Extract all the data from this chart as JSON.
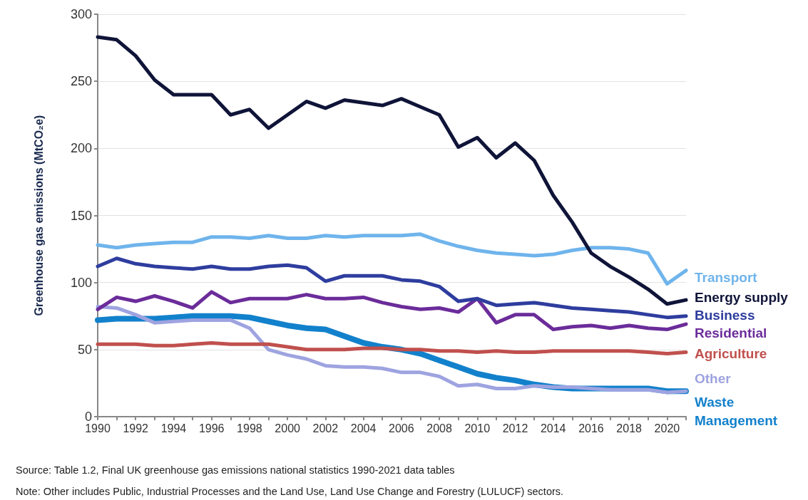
{
  "chart_data": {
    "type": "line",
    "ylabel": "Greenhouse gas emissions (MtCO₂e)",
    "x": [
      1990,
      1991,
      1992,
      1993,
      1994,
      1995,
      1996,
      1997,
      1998,
      1999,
      2000,
      2001,
      2002,
      2003,
      2004,
      2005,
      2006,
      2007,
      2008,
      2009,
      2010,
      2011,
      2012,
      2013,
      2014,
      2015,
      2016,
      2017,
      2018,
      2019,
      2020,
      2021
    ],
    "series": [
      {
        "name": "Energy supply",
        "color": "#0f1438",
        "values": [
          283,
          281,
          269,
          251,
          240,
          240,
          240,
          225,
          229,
          215,
          225,
          235,
          230,
          236,
          234,
          232,
          237,
          231,
          225,
          201,
          208,
          193,
          204,
          191,
          165,
          145,
          122,
          112,
          104,
          95,
          84,
          87
        ]
      },
      {
        "name": "Transport",
        "color": "#6fb4ec",
        "values": [
          128,
          126,
          128,
          129,
          130,
          130,
          134,
          134,
          133,
          135,
          133,
          133,
          135,
          134,
          135,
          135,
          135,
          136,
          131,
          127,
          124,
          122,
          121,
          120,
          121,
          124,
          126,
          126,
          125,
          122,
          99,
          109
        ]
      },
      {
        "name": "Business",
        "color": "#2e3d9e",
        "values": [
          112,
          118,
          114,
          112,
          111,
          110,
          112,
          110,
          110,
          112,
          113,
          111,
          101,
          105,
          105,
          105,
          102,
          101,
          97,
          86,
          88,
          83,
          84,
          85,
          83,
          81,
          80,
          79,
          78,
          76,
          74,
          75
        ]
      },
      {
        "name": "Residential",
        "color": "#6b2c9a",
        "values": [
          80,
          89,
          86,
          90,
          86,
          81,
          93,
          85,
          88,
          88,
          88,
          91,
          88,
          88,
          89,
          85,
          82,
          80,
          81,
          78,
          88,
          70,
          76,
          76,
          65,
          67,
          68,
          66,
          68,
          66,
          65,
          69
        ]
      },
      {
        "name": "Agriculture",
        "color": "#c0504d",
        "values": [
          54,
          54,
          54,
          53,
          53,
          54,
          55,
          54,
          54,
          54,
          52,
          50,
          50,
          50,
          51,
          51,
          50,
          50,
          49,
          49,
          48,
          49,
          48,
          48,
          49,
          49,
          49,
          49,
          49,
          48,
          47,
          48
        ]
      },
      {
        "name": "Other",
        "color": "#9ea3e0",
        "values": [
          82,
          81,
          76,
          70,
          71,
          72,
          72,
          72,
          66,
          50,
          46,
          43,
          38,
          37,
          37,
          36,
          33,
          33,
          30,
          23,
          24,
          21,
          21,
          23,
          22,
          22,
          21,
          20,
          20,
          20,
          18,
          19
        ]
      },
      {
        "name": "Waste Management",
        "color": "#1281cc",
        "values": [
          72,
          73,
          73,
          73,
          74,
          75,
          75,
          75,
          74,
          71,
          68,
          66,
          65,
          60,
          55,
          52,
          50,
          47,
          42,
          37,
          32,
          29,
          27,
          24,
          22,
          21,
          21,
          21,
          21,
          21,
          19,
          19
        ]
      }
    ],
    "xlim": [
      1990,
      2021
    ],
    "xticks": [
      1990,
      {
        "value": 1991,
        "label": null
      },
      1992,
      {
        "value": 1993,
        "label": null
      },
      1994,
      {
        "value": 1995,
        "label": null
      },
      1996,
      {
        "value": 1997,
        "label": null
      },
      1998,
      {
        "value": 1999,
        "label": null
      },
      2000,
      {
        "value": 2001,
        "label": null
      },
      2002,
      {
        "value": 2003,
        "label": null
      },
      2004,
      {
        "value": 2005,
        "label": null
      },
      2006,
      {
        "value": 2007,
        "label": null
      },
      2008,
      {
        "value": 2009,
        "label": null
      },
      2010,
      {
        "value": 2011,
        "label": null
      },
      2012,
      {
        "value": 2013,
        "label": null
      },
      2014,
      {
        "value": 2015,
        "label": null
      },
      2016,
      {
        "value": 2017,
        "label": null
      },
      2018,
      {
        "value": 2019,
        "label": null
      },
      2020,
      {
        "value": 2021,
        "label": null
      }
    ],
    "ylim": [
      0,
      300
    ],
    "yticks": [
      0,
      50,
      100,
      150,
      200,
      250,
      300
    ],
    "grid": "y",
    "legend": false,
    "marker": "none",
    "line_style": "solid",
    "annotations": [
      "Source:    Table 1.2, Final UK greenhouse gas emissions national statistics 1990-2021 data tables",
      "Note: Other includes  Public, Industrial Processes and the Land Use, Land Use Change and Forestry (LULUCF) sectors."
    ]
  }
}
